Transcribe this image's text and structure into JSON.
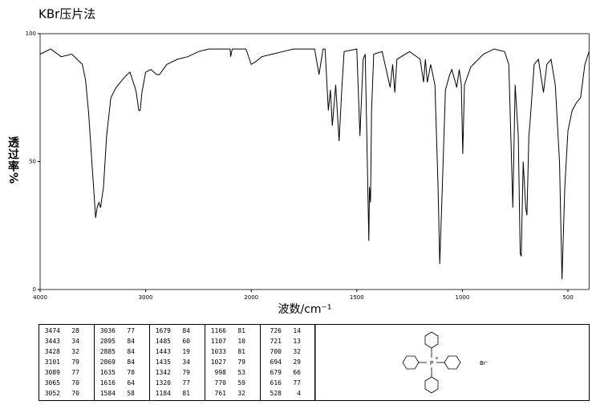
{
  "chart_data": {
    "type": "line",
    "title": "KBr压片法",
    "x_label": "波数/cm⁻¹",
    "y_label": "透过率%",
    "color": "#000000",
    "xlim": [
      4000,
      400
    ],
    "xticks": [
      4000,
      3000,
      2000,
      1500,
      1000,
      500
    ],
    "ylim": [
      0,
      100
    ],
    "yticks": [
      0,
      50,
      100
    ],
    "x": [
      4000,
      3900,
      3800,
      3700,
      3650,
      3600,
      3570,
      3540,
      3510,
      3490,
      3474,
      3460,
      3443,
      3428,
      3400,
      3370,
      3330,
      3280,
      3200,
      3150,
      3101,
      3089,
      3065,
      3052,
      3036,
      3000,
      2950,
      2895,
      2885,
      2869,
      2800,
      2700,
      2600,
      2500,
      2400,
      2300,
      2200,
      2195,
      2180,
      2100,
      2050,
      2000,
      1980,
      1950,
      1900,
      1850,
      1800,
      1700,
      1679,
      1660,
      1650,
      1635,
      1625,
      1616,
      1600,
      1584,
      1570,
      1560,
      1500,
      1485,
      1470,
      1460,
      1443,
      1440,
      1435,
      1430,
      1420,
      1380,
      1342,
      1330,
      1320,
      1310,
      1250,
      1200,
      1184,
      1175,
      1166,
      1150,
      1130,
      1115,
      1107,
      1095,
      1080,
      1060,
      1050,
      1033,
      1027,
      1015,
      1005,
      998,
      990,
      960,
      900,
      850,
      800,
      780,
      770,
      761,
      750,
      735,
      726,
      721,
      712,
      700,
      694,
      685,
      679,
      660,
      640,
      616,
      600,
      580,
      560,
      540,
      528,
      515,
      500,
      480,
      460,
      440,
      420,
      400
    ],
    "values": [
      92,
      94,
      91,
      92,
      90,
      88,
      82,
      69,
      50,
      38,
      28,
      32,
      34,
      32,
      40,
      60,
      75,
      79,
      83,
      85,
      79,
      77,
      70,
      70,
      77,
      85,
      86,
      84,
      84,
      84,
      88,
      90,
      91,
      93,
      94,
      94,
      94,
      91,
      94,
      94,
      94,
      88,
      89,
      91,
      92,
      93,
      94,
      94,
      84,
      94,
      94,
      70,
      78,
      64,
      80,
      58,
      80,
      93,
      94,
      60,
      90,
      92,
      19,
      40,
      34,
      70,
      92,
      93,
      79,
      88,
      77,
      90,
      93,
      90,
      81,
      90,
      81,
      88,
      80,
      40,
      10,
      40,
      78,
      84,
      86,
      81,
      79,
      86,
      80,
      53,
      80,
      87,
      92,
      94,
      93,
      88,
      59,
      32,
      80,
      60,
      14,
      13,
      50,
      32,
      29,
      60,
      66,
      88,
      90,
      77,
      88,
      90,
      80,
      50,
      4,
      40,
      62,
      70,
      73,
      75,
      88,
      93
    ]
  },
  "peak_table": {
    "columns": [
      [
        [
          3474,
          28
        ],
        [
          3443,
          34
        ],
        [
          3428,
          32
        ],
        [
          3101,
          79
        ],
        [
          3089,
          77
        ],
        [
          3065,
          70
        ],
        [
          3052,
          70
        ]
      ],
      [
        [
          3036,
          77
        ],
        [
          2895,
          84
        ],
        [
          2885,
          84
        ],
        [
          2869,
          84
        ],
        [
          1635,
          70
        ],
        [
          1616,
          64
        ],
        [
          1584,
          58
        ]
      ],
      [
        [
          1679,
          84
        ],
        [
          1485,
          60
        ],
        [
          1443,
          19
        ],
        [
          1435,
          34
        ],
        [
          1342,
          79
        ],
        [
          1320,
          77
        ],
        [
          1184,
          81
        ]
      ],
      [
        [
          1166,
          81
        ],
        [
          1107,
          10
        ],
        [
          1033,
          81
        ],
        [
          1027,
          79
        ],
        [
          998,
          53
        ],
        [
          770,
          59
        ],
        [
          761,
          32
        ]
      ],
      [
        [
          726,
          14
        ],
        [
          721,
          13
        ],
        [
          700,
          32
        ],
        [
          694,
          29
        ],
        [
          679,
          66
        ],
        [
          616,
          77
        ],
        [
          528,
          4
        ]
      ]
    ]
  },
  "structure": {
    "center": "P",
    "charge": "+",
    "counter_ion": "Br⁻"
  }
}
